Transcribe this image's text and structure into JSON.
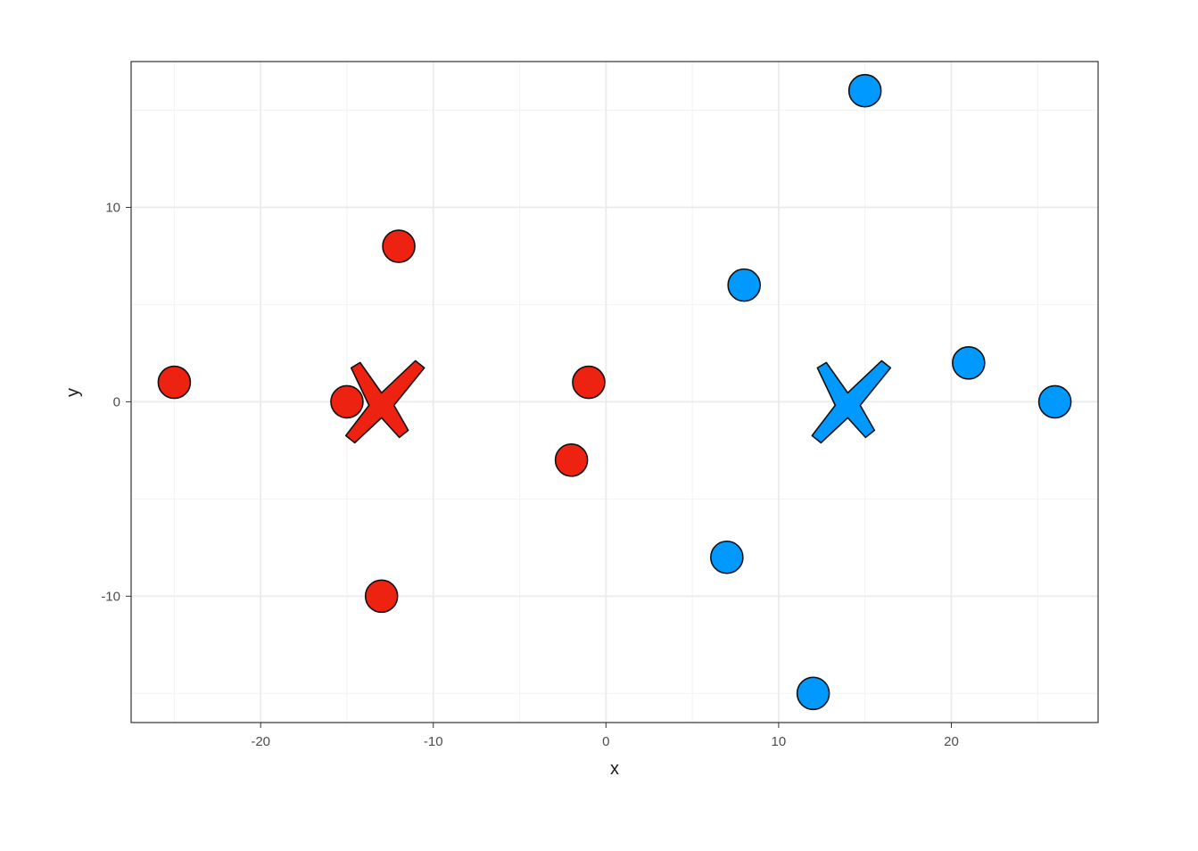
{
  "chart_data": {
    "type": "scatter",
    "xlabel": "x",
    "ylabel": "y",
    "xlim": [
      -27.5,
      28.5
    ],
    "ylim": [
      -16.5,
      17.5
    ],
    "x_major_ticks": [
      -20,
      -10,
      0,
      10,
      20
    ],
    "x_minor_ticks": [
      -25,
      -15,
      -5,
      5,
      15,
      25
    ],
    "y_major_ticks": [
      -10,
      0,
      10
    ],
    "y_minor_ticks": [
      -15,
      -5,
      5,
      15
    ],
    "x_tick_labels": [
      "-20",
      "-10",
      "0",
      "10",
      "20"
    ],
    "y_tick_labels": [
      "-10",
      "0",
      "10"
    ],
    "grid": true,
    "legend": "none",
    "theme": "bw",
    "series": [
      {
        "color": "#ee2211",
        "points": [
          {
            "x": -25,
            "y": 1
          },
          {
            "x": -15,
            "y": 0
          },
          {
            "x": -12,
            "y": 8
          },
          {
            "x": -13,
            "y": -10
          },
          {
            "x": -1,
            "y": 1
          },
          {
            "x": -2,
            "y": -3
          }
        ],
        "centroid": {
          "x": -13,
          "y": 0
        }
      },
      {
        "color": "#0099ff",
        "points": [
          {
            "x": 15,
            "y": 16
          },
          {
            "x": 8,
            "y": 6
          },
          {
            "x": 21,
            "y": 2
          },
          {
            "x": 26,
            "y": 0
          },
          {
            "x": 7,
            "y": -8
          },
          {
            "x": 12,
            "y": -15
          }
        ],
        "centroid": {
          "x": 14,
          "y": 0
        }
      }
    ]
  }
}
